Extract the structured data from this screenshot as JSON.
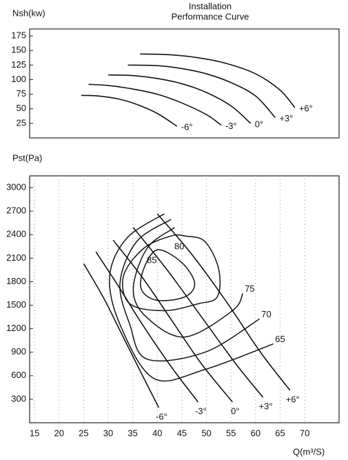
{
  "chart_data": [
    {
      "type": "line",
      "title": [
        "Installation",
        "Performance Curve"
      ],
      "y_label": "Nsh(kw)",
      "xlim": [
        14,
        77
      ],
      "ylim": [
        0,
        187
      ],
      "yticks": [
        25,
        50,
        75,
        100,
        125,
        150,
        175
      ],
      "color": "#111111",
      "series": [
        {
          "name": "-6°",
          "x": [
            24.5,
            28,
            32,
            36,
            40,
            44
          ],
          "values": [
            73,
            72,
            67,
            57,
            42,
            20
          ]
        },
        {
          "name": "-3°",
          "x": [
            26,
            30,
            35,
            40,
            45,
            50,
            53
          ],
          "values": [
            92,
            90,
            84,
            75,
            60,
            40,
            22
          ]
        },
        {
          "name": "0°",
          "x": [
            30,
            35,
            40,
            45,
            50,
            55,
            59
          ],
          "values": [
            108,
            107,
            102,
            93,
            78,
            55,
            25
          ]
        },
        {
          "name": "+3°",
          "x": [
            34,
            40,
            45,
            50,
            55,
            60,
            64
          ],
          "values": [
            125,
            124,
            119,
            110,
            95,
            72,
            35
          ]
        },
        {
          "name": "+6°",
          "x": [
            36.5,
            42,
            48,
            54,
            60,
            65,
            68
          ],
          "values": [
            144,
            143,
            138,
            128,
            110,
            82,
            52
          ]
        }
      ]
    },
    {
      "type": "line",
      "y_label": "Pst(Pa)",
      "x_label": "Q(m³/S)",
      "xlim": [
        14,
        77
      ],
      "ylim": [
        0,
        3150
      ],
      "xticks": [
        15,
        20,
        25,
        30,
        35,
        40,
        45,
        50,
        55,
        60,
        65,
        70
      ],
      "yticks": [
        300,
        600,
        900,
        1200,
        1500,
        1800,
        2100,
        2400,
        2700,
        3000
      ],
      "grid": "x",
      "color": "#111111",
      "series": [
        {
          "name": "-6°",
          "x": [
            25,
            29,
            33,
            37,
            40.3
          ],
          "values": [
            2030,
            1600,
            1100,
            600,
            194
          ]
        },
        {
          "name": "-3°",
          "x": [
            27.5,
            32,
            37,
            43,
            48.3
          ],
          "values": [
            2180,
            1750,
            1250,
            700,
            265
          ]
        },
        {
          "name": "0°",
          "x": [
            31,
            37,
            43,
            49,
            55.3
          ],
          "values": [
            2330,
            1850,
            1300,
            750,
            265
          ]
        },
        {
          "name": "+3°",
          "x": [
            35.1,
            42,
            49,
            56,
            61.5
          ],
          "values": [
            2490,
            1950,
            1350,
            750,
            326
          ]
        },
        {
          "name": "+6°",
          "x": [
            40,
            47,
            54,
            61,
            67
          ],
          "values": [
            2665,
            2150,
            1550,
            900,
            415
          ]
        }
      ],
      "contours": [
        {
          "name": "65",
          "closed": false,
          "x": [
            41.4,
            33.8,
            30.3,
            32.4,
            39.3,
            49.7,
            63.6
          ],
          "values": [
            2665,
            2356,
            1871,
            1253,
            565,
            680,
            1006
          ]
        },
        {
          "name": "70",
          "closed": false,
          "x": [
            42.8,
            35.8,
            32.4,
            34.4,
            37.9,
            49.7,
            60.8
          ],
          "values": [
            2595,
            2312,
            1783,
            1253,
            812,
            900,
            1324
          ]
        },
        {
          "name": "75",
          "closed": false,
          "x": [
            43.5,
            37.9,
            35.1,
            37.9,
            45.6,
            55.3,
            57.4
          ],
          "values": [
            2489,
            2224,
            1695,
            1341,
            1094,
            1430,
            1650
          ]
        },
        {
          "name": "80",
          "closed": true,
          "x": [
            45.6,
            49.7,
            52.5,
            52.2,
            48.3,
            41.4,
            34.4,
            33.1,
            37.2,
            42.8
          ],
          "values": [
            2383,
            2312,
            1959,
            1606,
            1518,
            1430,
            1518,
            1871,
            2224,
            2383
          ]
        },
        {
          "name": "85",
          "closed": true,
          "x": [
            40,
            44.9,
            47.6,
            45.6,
            40,
            36.8,
            37.2
          ],
          "values": [
            2206,
            2048,
            1783,
            1606,
            1562,
            1695,
            1959
          ]
        }
      ]
    }
  ]
}
